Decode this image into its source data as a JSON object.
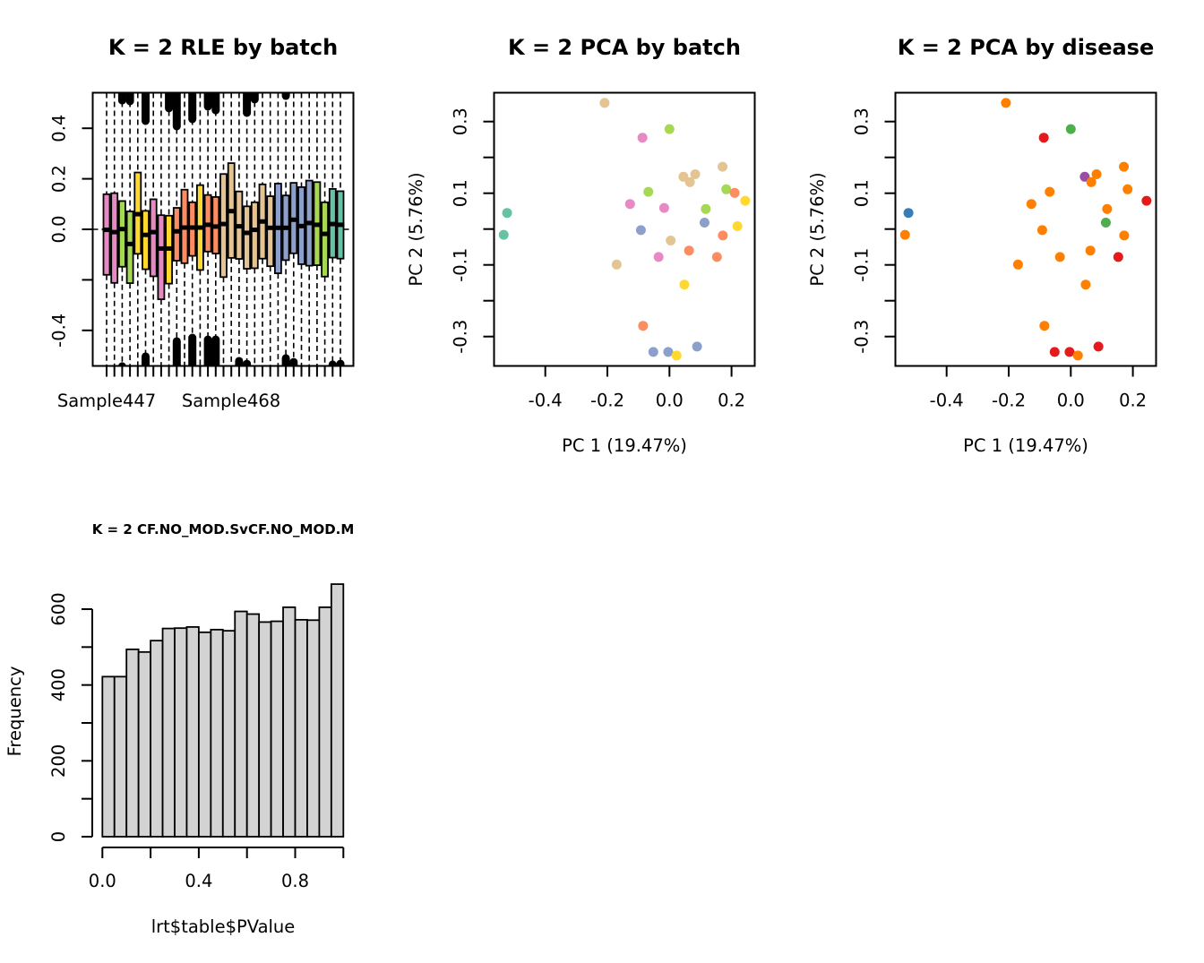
{
  "chart_data": [
    {
      "id": "rle",
      "type": "boxplot",
      "title": "K = 2 RLE by batch",
      "xlabel": "",
      "ylabel": "",
      "ylim": [
        -0.54,
        0.54
      ],
      "yticks": [
        -0.4,
        -0.2,
        0.0,
        0.2,
        0.4
      ],
      "ytick_labels": [
        "-0.4",
        "",
        "0.0",
        "0.2",
        "0.4"
      ],
      "xtick_labels_shown": [
        {
          "index": 1,
          "label": "Sample447"
        },
        {
          "index": 17,
          "label": "Sample468"
        }
      ],
      "reference_line": 0,
      "batch_colors": {
        "pink": "#E78AC3",
        "green": "#A6D854",
        "yellow": "#FFD92F",
        "salmon": "#FC8D62",
        "tan": "#E5C494",
        "blue": "#8DA0CB",
        "teal": "#66C2A5"
      },
      "boxes": [
        {
          "batch": "pink",
          "q3": 0.139,
          "median": -0.002,
          "q1": -0.18
        },
        {
          "batch": "pink",
          "q3": 0.143,
          "median": -0.011,
          "q1": -0.212
        },
        {
          "batch": "green",
          "q3": 0.112,
          "median": 0.001,
          "q1": -0.148,
          "out_hi": 0.496,
          "out_lo": -0.528
        },
        {
          "batch": "green",
          "q3": 0.071,
          "median": -0.058,
          "q1": -0.213,
          "out_hi": 0.493
        },
        {
          "batch": "yellow",
          "q3": 0.225,
          "median": 0.06,
          "q1": -0.097
        },
        {
          "batch": "yellow",
          "q3": 0.073,
          "median": -0.022,
          "q1": -0.158,
          "out_hi": 0.415,
          "out_lo": -0.489
        },
        {
          "batch": "pink",
          "q3": 0.119,
          "median": -0.011,
          "q1": -0.186
        },
        {
          "batch": "pink",
          "q3": 0.056,
          "median": -0.076,
          "q1": -0.277
        },
        {
          "batch": "yellow",
          "q3": 0.054,
          "median": -0.076,
          "q1": -0.215,
          "out_hi": 0.465
        },
        {
          "batch": "salmon",
          "q3": 0.085,
          "median": -0.008,
          "q1": -0.124,
          "out_hi": 0.394,
          "out_lo": -0.429
        },
        {
          "batch": "salmon",
          "q3": 0.157,
          "median": 0.007,
          "q1": -0.134
        },
        {
          "batch": "salmon",
          "q3": 0.107,
          "median": 0.007,
          "q1": -0.105,
          "out_hi": 0.422,
          "out_lo": -0.415
        },
        {
          "batch": "yellow",
          "q3": 0.175,
          "median": 0.007,
          "q1": -0.161
        },
        {
          "batch": "salmon",
          "q3": 0.136,
          "median": 0.018,
          "q1": -0.088,
          "out_hi": 0.472,
          "out_lo": -0.422
        },
        {
          "batch": "salmon",
          "q3": 0.128,
          "median": 0.011,
          "q1": -0.096,
          "out_hi": 0.457,
          "out_lo": -0.422
        },
        {
          "batch": "tan",
          "q3": 0.219,
          "median": 0.021,
          "q1": -0.189
        },
        {
          "batch": "tan",
          "q3": 0.262,
          "median": 0.072,
          "q1": -0.113
        },
        {
          "batch": "tan",
          "q3": 0.15,
          "median": 0.012,
          "q1": -0.117,
          "out_lo": -0.507
        },
        {
          "batch": "tan",
          "q3": 0.091,
          "median": -0.014,
          "q1": -0.156,
          "out_hi": 0.447,
          "out_lo": -0.518
        },
        {
          "batch": "tan",
          "q3": 0.107,
          "median": -0.002,
          "q1": -0.154,
          "out_hi": 0.5
        },
        {
          "batch": "tan",
          "q3": 0.178,
          "median": 0.031,
          "q1": -0.116
        },
        {
          "batch": "tan",
          "q3": 0.131,
          "median": 0.006,
          "q1": -0.146
        },
        {
          "batch": "blue",
          "q3": 0.181,
          "median": 0.006,
          "q1": -0.174
        },
        {
          "batch": "blue",
          "q3": 0.134,
          "median": 0.006,
          "q1": -0.122,
          "out_hi": 0.514,
          "out_lo": -0.496
        },
        {
          "batch": "blue",
          "q3": 0.184,
          "median": 0.038,
          "q1": -0.095,
          "out_lo": -0.511
        },
        {
          "batch": "blue",
          "q3": 0.167,
          "median": 0.013,
          "q1": -0.138
        },
        {
          "batch": "blue",
          "q3": 0.193,
          "median": 0.025,
          "q1": -0.144
        },
        {
          "batch": "green",
          "q3": 0.187,
          "median": 0.018,
          "q1": -0.142
        },
        {
          "batch": "green",
          "q3": 0.107,
          "median": -0.018,
          "q1": -0.187
        },
        {
          "batch": "teal",
          "q3": 0.16,
          "median": 0.021,
          "q1": -0.112,
          "out_lo": -0.521
        },
        {
          "batch": "teal",
          "q3": 0.151,
          "median": 0.018,
          "q1": -0.116,
          "out_lo": -0.518
        }
      ]
    },
    {
      "id": "pca_batch",
      "type": "scatter",
      "title": "K = 2 PCA by batch",
      "xlabel": "PC 1 (19.47%)",
      "ylabel": "PC 2 (5.76%)",
      "xlim": [
        -0.56,
        0.275
      ],
      "ylim": [
        -0.381,
        0.381
      ],
      "xticks": [
        -0.4,
        -0.2,
        0.0,
        0.2
      ],
      "xtick_labels": [
        "-0.4",
        "-0.2",
        "0.0",
        "0.2"
      ],
      "yticks": [
        -0.3,
        -0.2,
        -0.1,
        0.0,
        0.1,
        0.2,
        0.3
      ],
      "ytick_labels": [
        "-0.3",
        "",
        "-0.1",
        "",
        "0.1",
        "",
        "0.3"
      ],
      "color_by": "batch"
    },
    {
      "id": "pca_disease",
      "type": "scatter",
      "title": "K = 2 PCA by disease",
      "xlabel": "PC 1 (19.47%)",
      "ylabel": "PC 2 (5.76%)",
      "xlim": [
        -0.56,
        0.275
      ],
      "ylim": [
        -0.381,
        0.381
      ],
      "xticks": [
        -0.4,
        -0.2,
        0.0,
        0.2
      ],
      "xtick_labels": [
        "-0.4",
        "-0.2",
        "0.0",
        "0.2"
      ],
      "yticks": [
        -0.3,
        -0.2,
        -0.1,
        0.0,
        0.1,
        0.2,
        0.3
      ],
      "ytick_labels": [
        "-0.3",
        "",
        "-0.1",
        "",
        "0.1",
        "",
        "0.3"
      ],
      "color_by": "disease",
      "disease_colors": {
        "red": "#E41A1C",
        "blue": "#377EB8",
        "green": "#4DAF4A",
        "purple": "#984EA3",
        "orange": "#FF7F00"
      }
    },
    {
      "id": "hist",
      "type": "bar",
      "title": "K = 2 CF.NO_MOD.SvCF.NO_MOD.M",
      "xlabel": "lrt$table$PValue",
      "ylabel": "Frequency",
      "xlim": [
        0,
        1
      ],
      "ylim": [
        0,
        666
      ],
      "xticks": [
        0.0,
        0.2,
        0.4,
        0.6,
        0.8,
        1.0
      ],
      "xtick_labels": [
        "0.0",
        "",
        "0.4",
        "",
        "0.8",
        ""
      ],
      "yticks": [
        0,
        100,
        200,
        300,
        400,
        500,
        600
      ],
      "ytick_labels": [
        "0",
        "",
        "200",
        "",
        "400",
        "",
        "600"
      ],
      "bin_width": 0.05,
      "bar_color": "#D3D3D3",
      "values": [
        422,
        422,
        494,
        487,
        517,
        549,
        550,
        553,
        539,
        546,
        543,
        594,
        587,
        566,
        568,
        605,
        572,
        571,
        605,
        666
      ]
    }
  ],
  "pca_points": [
    {
      "pc1": -0.209,
      "pc2": 0.352,
      "batch": "tan",
      "disease": "orange"
    },
    {
      "pc1": 0.0,
      "pc2": 0.279,
      "batch": "green",
      "disease": "green"
    },
    {
      "pc1": -0.087,
      "pc2": 0.255,
      "batch": "pink",
      "disease": "red"
    },
    {
      "pc1": 0.171,
      "pc2": 0.174,
      "batch": "tan",
      "disease": "orange"
    },
    {
      "pc1": 0.045,
      "pc2": 0.146,
      "batch": "tan",
      "disease": "purple"
    },
    {
      "pc1": 0.083,
      "pc2": 0.153,
      "batch": "tan",
      "disease": "orange"
    },
    {
      "pc1": 0.066,
      "pc2": 0.131,
      "batch": "tan",
      "disease": "orange"
    },
    {
      "pc1": 0.183,
      "pc2": 0.111,
      "batch": "green",
      "disease": "orange"
    },
    {
      "pc1": 0.21,
      "pc2": 0.101,
      "batch": "salmon",
      "disease": null
    },
    {
      "pc1": -0.068,
      "pc2": 0.104,
      "batch": "green",
      "disease": "orange"
    },
    {
      "pc1": 0.244,
      "pc2": 0.079,
      "batch": "yellow",
      "disease": "red"
    },
    {
      "pc1": -0.127,
      "pc2": 0.07,
      "batch": "pink",
      "disease": "orange"
    },
    {
      "pc1": -0.017,
      "pc2": 0.059,
      "batch": "pink",
      "disease": null
    },
    {
      "pc1": 0.117,
      "pc2": 0.056,
      "batch": "green",
      "disease": "orange"
    },
    {
      "pc1": -0.523,
      "pc2": 0.045,
      "batch": "teal",
      "disease": "blue"
    },
    {
      "pc1": 0.113,
      "pc2": 0.018,
      "batch": "blue",
      "disease": "green"
    },
    {
      "pc1": 0.219,
      "pc2": 0.008,
      "batch": "yellow",
      "disease": null
    },
    {
      "pc1": -0.092,
      "pc2": -0.003,
      "batch": "blue",
      "disease": "orange"
    },
    {
      "pc1": -0.534,
      "pc2": -0.016,
      "batch": "teal",
      "disease": "orange"
    },
    {
      "pc1": 0.172,
      "pc2": -0.018,
      "batch": "salmon",
      "disease": "orange"
    },
    {
      "pc1": 0.004,
      "pc2": -0.032,
      "batch": "tan",
      "disease": null
    },
    {
      "pc1": 0.063,
      "pc2": -0.06,
      "batch": "salmon",
      "disease": "orange"
    },
    {
      "pc1": 0.153,
      "pc2": -0.078,
      "batch": "salmon",
      "disease": "red"
    },
    {
      "pc1": -0.035,
      "pc2": -0.078,
      "batch": "pink",
      "disease": "orange"
    },
    {
      "pc1": -0.17,
      "pc2": -0.099,
      "batch": "tan",
      "disease": "orange"
    },
    {
      "pc1": 0.048,
      "pc2": -0.155,
      "batch": "yellow",
      "disease": "orange"
    },
    {
      "pc1": -0.085,
      "pc2": -0.27,
      "batch": "salmon",
      "disease": "orange"
    },
    {
      "pc1": 0.089,
      "pc2": -0.328,
      "batch": "blue",
      "disease": "red"
    },
    {
      "pc1": -0.052,
      "pc2": -0.343,
      "batch": "blue",
      "disease": "red"
    },
    {
      "pc1": -0.004,
      "pc2": -0.343,
      "batch": "blue",
      "disease": "red"
    },
    {
      "pc1": 0.023,
      "pc2": -0.353,
      "batch": "yellow",
      "disease": "orange"
    }
  ]
}
